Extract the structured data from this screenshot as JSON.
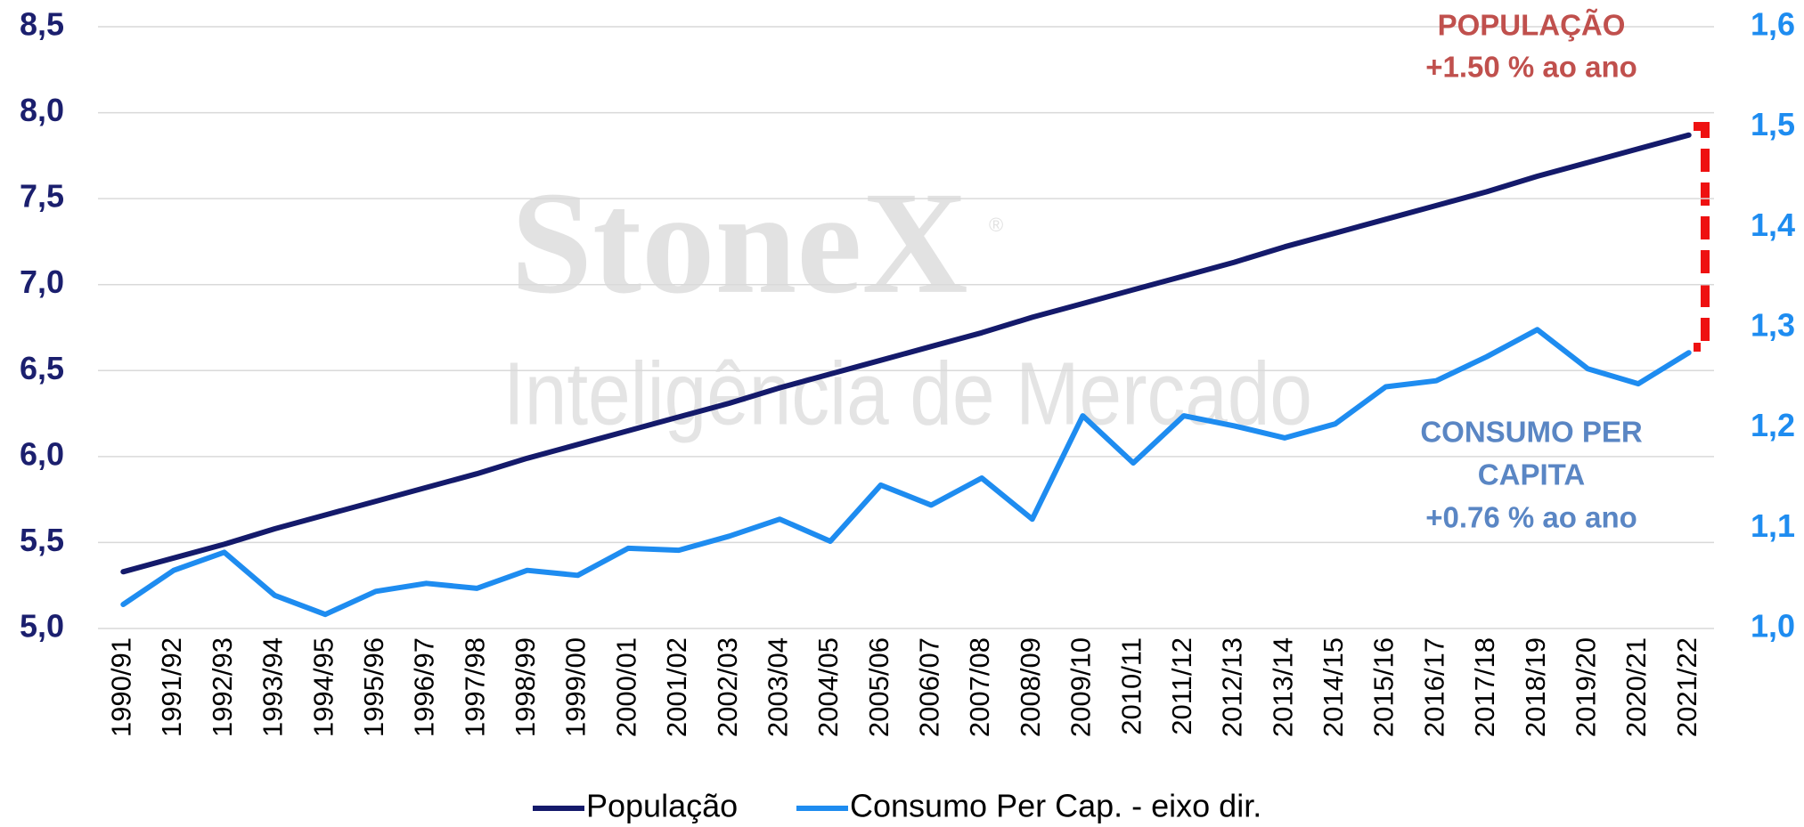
{
  "chart_data": {
    "type": "line",
    "categories": [
      "1990/91",
      "1991/92",
      "1992/93",
      "1993/94",
      "1994/95",
      "1995/96",
      "1996/97",
      "1997/98",
      "1998/99",
      "1999/00",
      "2000/01",
      "2001/02",
      "2002/03",
      "2003/04",
      "2004/05",
      "2005/06",
      "2006/07",
      "2007/08",
      "2008/09",
      "2009/10",
      "2010/11",
      "2011/12",
      "2012/13",
      "2013/14",
      "2014/15",
      "2015/16",
      "2016/17",
      "2017/18",
      "2018/19",
      "2019/20",
      "2020/21",
      "2021/22"
    ],
    "series": [
      {
        "name": "População",
        "color": "#141a6b",
        "axis": "y",
        "values": [
          5.33,
          5.41,
          5.49,
          5.58,
          5.66,
          5.74,
          5.82,
          5.9,
          5.99,
          6.07,
          6.15,
          6.23,
          6.31,
          6.4,
          6.48,
          6.56,
          6.64,
          6.72,
          6.81,
          6.89,
          6.97,
          7.05,
          7.13,
          7.22,
          7.3,
          7.38,
          7.46,
          7.54,
          7.63,
          7.71,
          7.79,
          7.87
        ]
      },
      {
        "name": "Consumo Per Cap. - eixo dir.",
        "color": "#1e8cf0",
        "axis": "y2",
        "values": [
          1.024,
          1.058,
          1.076,
          1.033,
          1.014,
          1.037,
          1.045,
          1.04,
          1.058,
          1.053,
          1.08,
          1.078,
          1.092,
          1.109,
          1.087,
          1.143,
          1.123,
          1.15,
          1.109,
          1.212,
          1.165,
          1.212,
          1.202,
          1.19,
          1.204,
          1.241,
          1.247,
          1.271,
          1.298,
          1.259,
          1.244,
          1.275
        ]
      }
    ],
    "ylim": [
      5.0,
      8.5
    ],
    "yticks": [
      {
        "value": 5.0,
        "label": "5,0"
      },
      {
        "value": 5.5,
        "label": "5,5"
      },
      {
        "value": 6.0,
        "label": "6,0"
      },
      {
        "value": 6.5,
        "label": "6,5"
      },
      {
        "value": 7.0,
        "label": "7,0"
      },
      {
        "value": 7.5,
        "label": "7,5"
      },
      {
        "value": 8.0,
        "label": "8,0"
      },
      {
        "value": 8.5,
        "label": "8,5"
      }
    ],
    "y2lim": [
      1.0,
      1.6
    ],
    "y2ticks": [
      {
        "value": 1.0,
        "label": "1,0"
      },
      {
        "value": 1.1,
        "label": "1,1"
      },
      {
        "value": 1.2,
        "label": "1,2"
      },
      {
        "value": 1.3,
        "label": "1,3"
      },
      {
        "value": 1.4,
        "label": "1,4"
      },
      {
        "value": 1.5,
        "label": "1,5"
      },
      {
        "value": 1.6,
        "label": "1,6"
      }
    ],
    "ytick_color": "#1b1f6e",
    "y2tick_color": "#1e8cf0",
    "grid": true,
    "legend": "bottom",
    "annotations": [
      {
        "lines": [
          "POPULAÇÃO",
          "+1.50 % ao ano"
        ],
        "color": "#c0504d"
      },
      {
        "lines": [
          "CONSUMO PER",
          "CAPITA",
          "+0.76 % ao ano"
        ],
        "color": "#5a86c4"
      }
    ],
    "watermark": {
      "brand": "StoneX",
      "mark": "®",
      "tagline": "Inteligência de Mercado"
    }
  }
}
